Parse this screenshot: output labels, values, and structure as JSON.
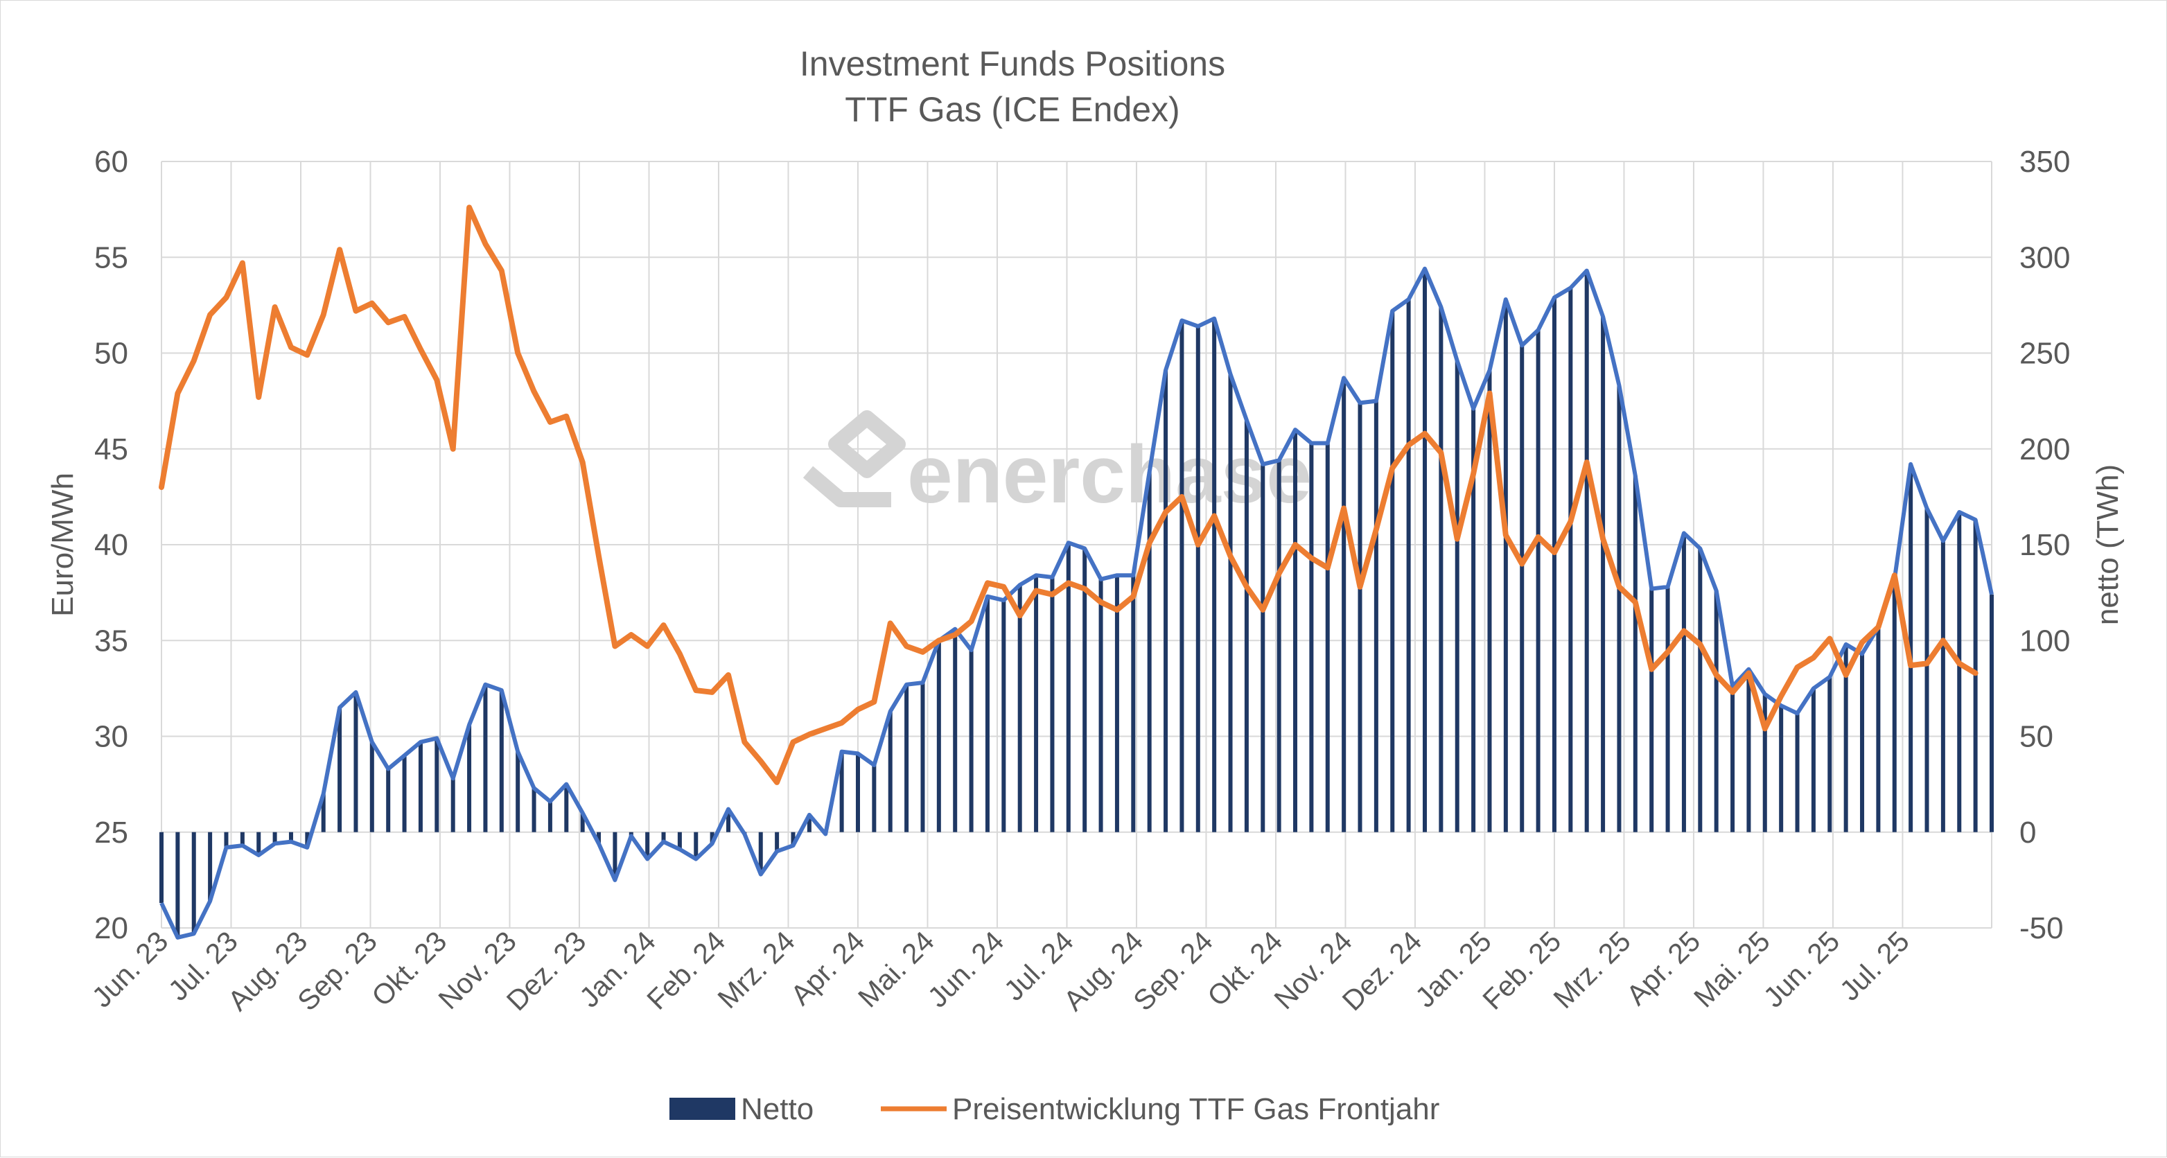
{
  "watermark": "enerchase",
  "chart_data": {
    "type": "bar+line",
    "title": "Investment Funds Positions",
    "subtitle": "TTF Gas (ICE Endex)",
    "y_left_label": "Euro/MWh",
    "y_right_label": "netto (TWh)",
    "y_left_range": [
      20,
      60
    ],
    "y_left_ticks": [
      "20",
      "25",
      "30",
      "35",
      "40",
      "45",
      "50",
      "55",
      "60"
    ],
    "y_right_range": [
      -50,
      350
    ],
    "y_right_ticks": [
      "-50",
      "0",
      "50",
      "100",
      "150",
      "200",
      "250",
      "300",
      "350"
    ],
    "grid": true,
    "legend_position": "bottom",
    "x_tick_labels": [
      "Jun. 23",
      "Jul. 23",
      "Aug. 23",
      "Sep. 23",
      "Okt. 23",
      "Nov. 23",
      "Dez. 23",
      "Jan. 24",
      "Feb. 24",
      "Mrz. 24",
      "Apr. 24",
      "Mai. 24",
      "Jun. 24",
      "Jul. 24",
      "Aug. 24",
      "Sep. 24",
      "Okt. 24",
      "Nov. 24",
      "Dez. 24",
      "Jan. 25",
      "Feb. 25",
      "Mrz. 25",
      "Apr. 25",
      "Mai. 25",
      "Jun. 25",
      "Jul. 25"
    ],
    "weeks_per_month": 4.3,
    "series": [
      {
        "name": "Netto",
        "kind": "bar",
        "axis": "right",
        "color": "#1f3864",
        "outline_color": "#4472c4",
        "values": [
          -37,
          -55,
          -53,
          -36,
          -8,
          -7,
          -12,
          -6,
          -5,
          -8,
          20,
          65,
          73,
          47,
          33,
          40,
          47,
          49,
          28,
          56,
          77,
          74,
          42,
          23,
          16,
          25,
          10,
          -6,
          -25,
          -2,
          -14,
          -5,
          -9,
          -14,
          -6,
          12,
          -1,
          -22,
          -10,
          -7,
          9,
          -1,
          42,
          41,
          35,
          63,
          77,
          78,
          100,
          106,
          95,
          123,
          121,
          129,
          134,
          133,
          151,
          148,
          132,
          134,
          134,
          188,
          241,
          267,
          264,
          268,
          239,
          215,
          192,
          194,
          210,
          203,
          203,
          237,
          224,
          225,
          272,
          278,
          294,
          274,
          246,
          221,
          241,
          278,
          254,
          262,
          279,
          284,
          293,
          269,
          233,
          186,
          127,
          128,
          156,
          148,
          126,
          76,
          85,
          72,
          66,
          62,
          75,
          81,
          98,
          93,
          107,
          132,
          192,
          169,
          152,
          167,
          163,
          124
        ]
      },
      {
        "name": "Preisentwicklung TTF Gas Frontjahr",
        "kind": "line",
        "axis": "left",
        "color": "#ed7d31",
        "values": [
          43.0,
          47.9,
          49.6,
          52.0,
          52.9,
          54.7,
          47.7,
          52.4,
          50.3,
          49.9,
          52.0,
          55.4,
          52.2,
          52.6,
          51.6,
          51.9,
          50.2,
          48.6,
          45.0,
          57.6,
          55.7,
          54.3,
          50.0,
          48.0,
          46.4,
          46.7,
          44.3,
          39.4,
          34.7,
          35.3,
          34.7,
          35.8,
          34.3,
          32.4,
          32.3,
          33.2,
          29.7,
          28.7,
          27.6,
          29.7,
          30.1,
          30.4,
          30.7,
          31.4,
          31.8,
          35.9,
          34.7,
          34.4,
          35.0,
          35.3,
          36.0,
          38.0,
          37.8,
          36.3,
          37.6,
          37.4,
          38.0,
          37.7,
          37.0,
          36.6,
          37.3,
          40.1,
          41.7,
          42.5,
          40.0,
          41.5,
          39.4,
          37.8,
          36.6,
          38.5,
          40.0,
          39.3,
          38.8,
          41.9,
          37.8,
          40.8,
          44.0,
          45.2,
          45.8,
          44.8,
          40.3,
          43.7,
          47.9,
          40.5,
          39.0,
          40.4,
          39.6,
          41.2,
          44.3,
          40.3,
          37.8,
          37.0,
          33.5,
          34.4,
          35.5,
          34.8,
          33.2,
          32.3,
          33.3,
          30.4,
          32.1,
          33.6,
          34.1,
          35.1,
          33.2,
          34.9,
          35.7,
          38.4,
          33.7,
          33.8,
          35.0,
          33.8,
          33.3
        ]
      }
    ]
  }
}
